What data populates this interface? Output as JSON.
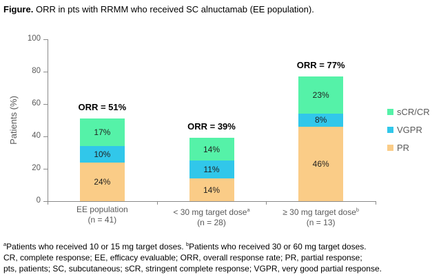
{
  "title": {
    "prefix": "Figure.",
    "text": " ORR in pts with RRMM who received SC alnuctamab (EE population)."
  },
  "chart_data": {
    "type": "bar",
    "subtype": "stacked",
    "title": "ORR in pts with RRMM who received SC alnuctamab (EE population)",
    "xlabel": "",
    "ylabel": "Patients (%)",
    "ylim": [
      0,
      100
    ],
    "yticks": [
      0,
      20,
      40,
      60,
      80,
      100
    ],
    "grid": "off",
    "legend_position": "right",
    "categories": [
      {
        "line1": "EE population",
        "sup": "",
        "line2": "(n = 41)"
      },
      {
        "line1": "< 30 mg target dose",
        "sup": "a",
        "line2": "(n = 28)"
      },
      {
        "line1": "≥ 30 mg target dose",
        "sup": "b",
        "line2": "(n = 13)"
      }
    ],
    "stack_order_note": "series listed bottom to top",
    "series": [
      {
        "name": "PR",
        "color": "#FACC87",
        "values": [
          24,
          14,
          46
        ]
      },
      {
        "name": "VGPR",
        "color": "#31C7EA",
        "values": [
          10,
          11,
          8
        ]
      },
      {
        "name": "sCR/CR",
        "color": "#55F2A8",
        "values": [
          17,
          14,
          23
        ]
      }
    ],
    "totals": [
      51,
      39,
      77
    ],
    "orr_labels": [
      "ORR = 51%",
      "ORR = 39%",
      "ORR = 77%"
    ]
  },
  "legend": {
    "items": [
      {
        "label": "sCR/CR",
        "color": "#55F2A8"
      },
      {
        "label": "VGPR",
        "color": "#31C7EA"
      },
      {
        "label": "PR",
        "color": "#FACC87"
      }
    ]
  },
  "footnotes": {
    "lines": [
      {
        "segments": [
          {
            "sup": "a"
          },
          {
            "text": "Patients who received 10 or 15 mg target doses. "
          },
          {
            "sup": "b"
          },
          {
            "text": "Patients who received 30 or 60 mg target doses."
          }
        ]
      },
      {
        "segments": [
          {
            "text": "CR, complete response; EE, efficacy evaluable; ORR, overall response rate; PR, partial response;"
          }
        ]
      },
      {
        "segments": [
          {
            "text": "pts, patients; SC, subcutaneous; sCR, stringent complete response; VGPR, very good partial response."
          }
        ]
      }
    ]
  },
  "colors": {
    "axis": "#898989",
    "axis_text": "#595959",
    "segment_label": "#1F1F1F",
    "annotation_text": "#000000"
  }
}
